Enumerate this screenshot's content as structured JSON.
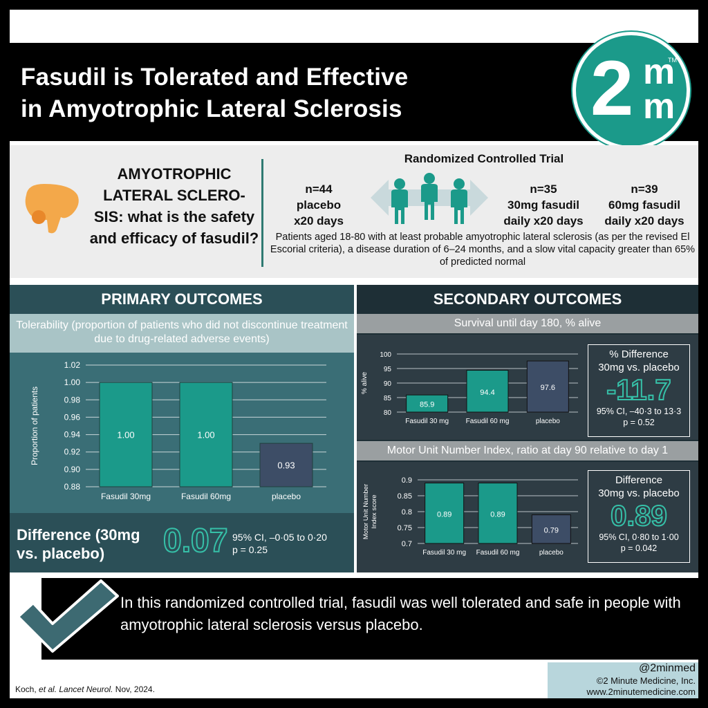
{
  "header": {
    "title_line1": "Fasudil is Tolerated and Effective",
    "title_line2": "in Amyotrophic Lateral Sclerosis",
    "logo": {
      "big": "2",
      "m1": "m",
      "m2": "m",
      "tm": "TM"
    }
  },
  "study": {
    "question": "AMYOTROPHIC LATERAL SCLERO-SIS: what is the safety and efficacy of fasudil?",
    "rct_title": "Randomized Controlled Trial",
    "arm1": {
      "n": "n=44",
      "desc1": "placebo",
      "desc2": "x20 days"
    },
    "arm2": {
      "n": "n=35",
      "desc1": "30mg fasudil",
      "desc2": "daily x20 days"
    },
    "arm3": {
      "n": "n=39",
      "desc1": "60mg fasudil",
      "desc2": "daily x20 days"
    },
    "criteria": "Patients aged 18-80 with at least probable amyotrophic lateral sclerosis (as per the revised El Escorial criteria), a disease duration of 6–24 months, and a slow vital capacity greater than 65% of predicted normal",
    "colors": {
      "brain": "#f3a84a",
      "people": "#1b9a8a",
      "arrow": "#c9d9dc"
    }
  },
  "primary": {
    "heading": "PRIMARY OUTCOMES",
    "subtitle": "Tolerability (proportion of patients who did not discontinue treatment due to drug-related adverse events)",
    "diff_label": "Difference (30mg vs. placebo)",
    "diff_value": "0.07",
    "ci": "95% CI,  –0·05 to 0·20",
    "p": "p = 0.25"
  },
  "secondary": {
    "heading": "SECONDARY OUTCOMES",
    "survival_title": "Survival until day 180, % alive",
    "survival_box": {
      "title1": "% Difference",
      "title2": "30mg vs. placebo",
      "value": "-11.7",
      "ci": "95% CI, –40·3 to 13·3",
      "p": "p = 0.52"
    },
    "munix_title": "Motor Unit Number Index, ratio at day 90 relative to day 1",
    "munix_box": {
      "title1": "Difference",
      "title2": "30mg vs. placebo",
      "value": "0.89",
      "ci": "95% CI, 0·80 to 1·00",
      "p": "p = 0.042"
    }
  },
  "conclusion": "In this randomized controlled trial, fasudil was well tolerated and safe in people with amyotrophic lateral sclerosis versus placebo.",
  "footer": {
    "cite_pre": "Koch, ",
    "cite_em": "et al. Lancet Neurol.",
    "cite_post": " Nov, 2024.",
    "handle": "@2minmed",
    "company": "©2 Minute Medicine, Inc.",
    "url": "www.2minutemedicine.com"
  },
  "chart_data": [
    {
      "type": "bar",
      "categories": [
        "Fasudil 30mg",
        "Fasudil 60mg",
        "placebo"
      ],
      "values": [
        1.0,
        1.0,
        0.93
      ],
      "labels": [
        "1.00",
        "1.00",
        "0.93"
      ],
      "ylabel": "Proportion of patients",
      "ylim": [
        0.88,
        1.02
      ],
      "yticks": [
        "0.88",
        "0.90",
        "0.92",
        "0.94",
        "0.96",
        "0.98",
        "1.00",
        "1.02"
      ],
      "grid": true,
      "colors": [
        "#1b9a8a",
        "#1b9a8a",
        "#3d4d66"
      ]
    },
    {
      "type": "bar",
      "categories": [
        "Fasudil 30 mg",
        "Fasudil 60 mg",
        "placebo"
      ],
      "values": [
        85.9,
        94.4,
        97.6
      ],
      "labels": [
        "85.9",
        "94.4",
        "97.6"
      ],
      "ylabel": "% alive",
      "ylim": [
        80,
        100
      ],
      "yticks": [
        "80",
        "85",
        "90",
        "95",
        "100"
      ],
      "grid": true,
      "colors": [
        "#1b9a8a",
        "#1b9a8a",
        "#3d4d66"
      ]
    },
    {
      "type": "bar",
      "categories": [
        "Fasudil 30 mg",
        "Fasudil 60 mg",
        "placebo"
      ],
      "values": [
        0.89,
        0.89,
        0.79
      ],
      "labels": [
        "0.89",
        "0.89",
        "0.79"
      ],
      "ylabel": "Motor Unit Number Index score",
      "ylim": [
        0.7,
        0.9
      ],
      "yticks": [
        "0.7",
        "0.75",
        "0.8",
        "0.85",
        "0.9"
      ],
      "grid": true,
      "colors": [
        "#1b9a8a",
        "#1b9a8a",
        "#3d4d66"
      ]
    }
  ]
}
